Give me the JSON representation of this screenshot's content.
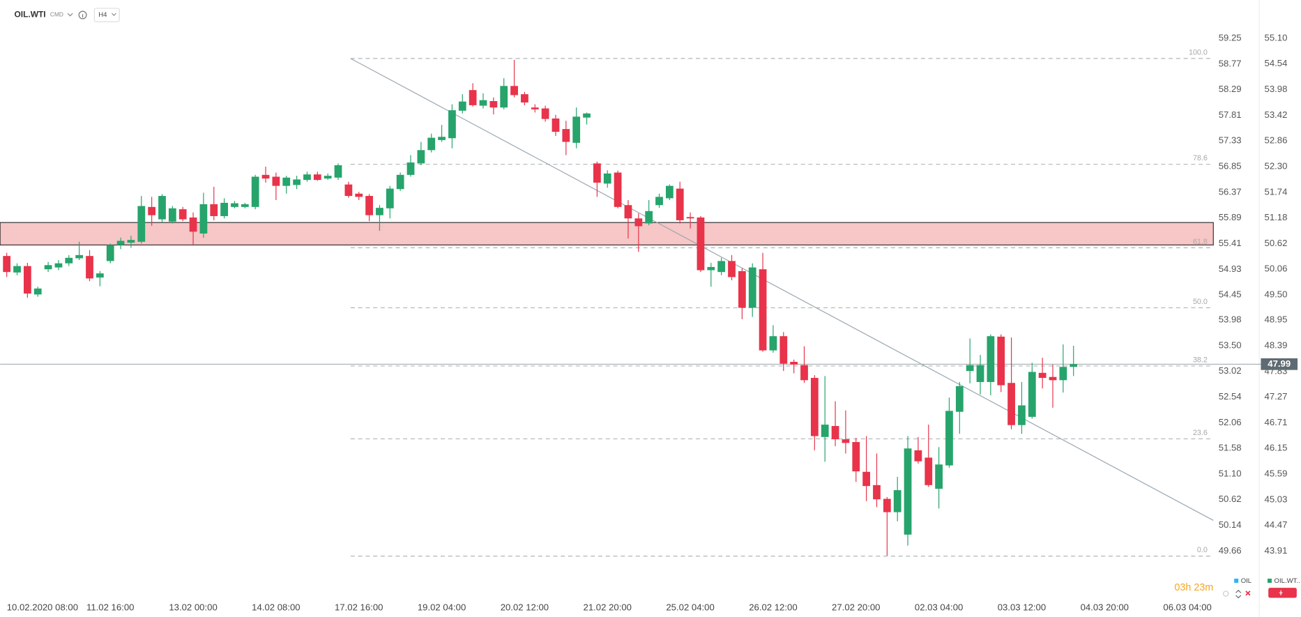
{
  "chart_data": {
    "type": "candlestick",
    "title": "OIL.WTI",
    "subtitle": "CMD",
    "timeframe": "H4",
    "countdown": "03h 23m",
    "current_price": 47.99,
    "legend": [
      {
        "name": "OIL",
        "color": "#29b6f6"
      },
      {
        "name": "OIL.WT..",
        "color": "#26a46b"
      }
    ],
    "up_color": "#26a46b",
    "down_color": "#e8334a",
    "xlim": [
      -0.64,
      116.5
    ],
    "xticks": [
      {
        "value": 2,
        "label": "10.02.2020   08:00"
      },
      {
        "value": 10,
        "label": "11.02 16:00"
      },
      {
        "value": 18,
        "label": "13.02 00:00"
      },
      {
        "value": 26,
        "label": "14.02 08:00"
      },
      {
        "value": 34,
        "label": "17.02 16:00"
      },
      {
        "value": 42,
        "label": "19.02 04:00"
      },
      {
        "value": 50,
        "label": "20.02 12:00"
      },
      {
        "value": 58,
        "label": "21.02 20:00"
      },
      {
        "value": 66,
        "label": "25.02 04:00"
      },
      {
        "value": 74,
        "label": "26.02 12:00"
      },
      {
        "value": 82,
        "label": "27.02 20:00"
      },
      {
        "value": 90,
        "label": "02.03 04:00"
      },
      {
        "value": 98,
        "label": "03.03 12:00"
      },
      {
        "value": 106,
        "label": "04.03 20:00"
      },
      {
        "value": 114,
        "label": "06.03 04:00"
      }
    ],
    "ylim": [
      49.05,
      59.5
    ],
    "yticks": [
      59.25,
      58.77,
      58.29,
      57.81,
      57.33,
      56.85,
      56.37,
      55.89,
      55.41,
      54.93,
      54.45,
      53.98,
      {
        "value": 53.5,
        "label": "53.50"
      },
      53.02,
      52.54,
      52.06,
      51.58,
      {
        "value": 51.1,
        "label": "51.10"
      },
      50.62,
      50.14,
      49.66
    ],
    "y2lim": [
      43.2,
      55.39
    ],
    "y2ticks": [
      {
        "value": 55.1,
        "label": "55.10"
      },
      54.54,
      53.98,
      53.42,
      52.86,
      {
        "value": 52.3,
        "label": "52.30"
      },
      51.74,
      51.18,
      50.62,
      50.06,
      {
        "value": 49.5,
        "label": "49.50"
      },
      48.95,
      48.39,
      47.83,
      47.27,
      46.71,
      46.15,
      45.59,
      45.03,
      44.47,
      43.91
    ],
    "series": [
      {
        "name": "OIL.WT..",
        "axis": "y2",
        "open": [
          50.35,
          49.99,
          50.13,
          49.51,
          50.06,
          50.1,
          50.19,
          50.3,
          50.35,
          49.88,
          50.24,
          50.59,
          50.64,
          50.66,
          51.42,
          51.15,
          51.1,
          51.37,
          51.19,
          50.84,
          51.48,
          51.22,
          51.42,
          51.42,
          51.42,
          52.12,
          52.08,
          51.88,
          51.9,
          52.01,
          52.13,
          52.04,
          52.06,
          51.91,
          51.71,
          51.66,
          51.24,
          51.39,
          51.81,
          52.12,
          52.37,
          52.66,
          52.88,
          52.92,
          53.52,
          53.97,
          53.63,
          53.73,
          53.59,
          54.06,
          53.88,
          53.59,
          53.57,
          53.35,
          53.12,
          52.82,
          53.37,
          52.37,
          51.93,
          52.17,
          51.46,
          51.17,
          51.06,
          51.46,
          51.61,
          51.82,
          51.2,
          51.19,
          50.04,
          50.0,
          50.24,
          50.02,
          49.22,
          50.06,
          48.29,
          48.6,
          48.04,
          47.97,
          47.69,
          46.4,
          46.64,
          46.35,
          46.29,
          45.64,
          45.35,
          45.05,
          44.76,
          44.27,
          46.11,
          45.95,
          45.27,
          45.78,
          46.95,
          47.84,
          47.6,
          47.6,
          48.59,
          47.58,
          46.66,
          46.84,
          47.8,
          47.71,
          47.64,
          47.93
        ],
        "high": [
          50.42,
          50.19,
          50.2,
          49.68,
          50.22,
          50.26,
          50.37,
          50.66,
          50.48,
          50.02,
          50.62,
          50.75,
          50.79,
          51.66,
          51.64,
          51.7,
          51.44,
          51.42,
          51.3,
          51.73,
          51.86,
          51.61,
          51.55,
          51.51,
          52.12,
          52.3,
          52.17,
          52.1,
          52.1,
          52.19,
          52.19,
          52.15,
          52.37,
          51.97,
          51.75,
          51.7,
          51.46,
          51.88,
          52.17,
          52.55,
          52.84,
          53.02,
          53.21,
          53.66,
          53.88,
          54.12,
          53.9,
          53.81,
          54.23,
          54.63,
          53.93,
          53.66,
          53.63,
          53.43,
          53.3,
          53.59,
          53.48,
          52.41,
          52.22,
          52.21,
          51.57,
          51.28,
          51.57,
          51.71,
          51.91,
          51.97,
          51.3,
          51.22,
          50.2,
          50.31,
          50.37,
          50.08,
          50.19,
          50.42,
          48.84,
          48.69,
          48.09,
          48.38,
          47.75,
          47.73,
          47.18,
          46.98,
          46.38,
          46.42,
          46.04,
          45.09,
          45.53,
          46.42,
          46.4,
          46.67,
          46.18,
          47.26,
          47.6,
          48.55,
          48.19,
          48.64,
          48.64,
          48.57,
          47.6,
          48.02,
          48.13,
          47.98,
          48.42,
          48.39
        ],
        "low": [
          49.89,
          49.93,
          49.44,
          49.46,
          50.0,
          50.04,
          50.13,
          50.26,
          49.8,
          49.69,
          50.19,
          50.5,
          50.53,
          50.62,
          51.01,
          51.08,
          51.06,
          51.11,
          50.6,
          50.75,
          51.13,
          51.17,
          51.39,
          51.39,
          51.37,
          51.95,
          51.57,
          51.71,
          51.81,
          51.97,
          51.99,
          52.01,
          52.01,
          51.62,
          51.57,
          51.11,
          50.9,
          51.17,
          51.77,
          52.08,
          52.33,
          52.61,
          52.84,
          52.7,
          53.46,
          53.61,
          53.57,
          53.44,
          53.55,
          53.81,
          53.64,
          53.48,
          53.28,
          52.97,
          52.55,
          52.7,
          53.22,
          51.64,
          51.84,
          51.39,
          50.73,
          50.44,
          51.02,
          51.4,
          51.57,
          51.06,
          50.95,
          50.0,
          49.68,
          49.93,
          49.82,
          48.97,
          49.02,
          48.26,
          48.24,
          47.84,
          47.79,
          47.58,
          46.11,
          45.86,
          46.2,
          46.04,
          45.42,
          45.0,
          44.87,
          43.81,
          44.56,
          44.03,
          45.82,
          45.31,
          44.84,
          45.73,
          46.47,
          47.57,
          47.33,
          47.31,
          47.38,
          46.57,
          46.47,
          46.8,
          47.46,
          47.04,
          47.37,
          47.73
        ],
        "close": [
          50.0,
          50.13,
          49.53,
          49.64,
          50.15,
          50.19,
          50.31,
          50.37,
          49.86,
          49.97,
          50.59,
          50.68,
          50.7,
          51.44,
          51.24,
          51.66,
          51.39,
          51.15,
          50.88,
          51.48,
          51.22,
          51.51,
          51.5,
          51.48,
          52.08,
          52.04,
          51.88,
          52.06,
          52.02,
          52.13,
          52.01,
          52.1,
          52.33,
          51.66,
          51.64,
          51.24,
          51.4,
          51.82,
          52.12,
          52.39,
          52.66,
          52.93,
          52.95,
          53.53,
          53.72,
          53.64,
          53.75,
          53.59,
          54.06,
          53.86,
          53.7,
          53.55,
          53.34,
          53.06,
          52.84,
          53.39,
          53.46,
          51.95,
          52.15,
          51.42,
          51.17,
          51.0,
          51.33,
          51.64,
          51.88,
          51.13,
          51.17,
          50.04,
          50.11,
          50.24,
          49.89,
          49.22,
          50.1,
          48.29,
          48.6,
          48.0,
          47.98,
          47.64,
          46.42,
          46.67,
          46.35,
          46.27,
          45.65,
          45.33,
          45.04,
          44.76,
          45.24,
          46.15,
          45.87,
          45.35,
          45.8,
          46.97,
          47.51,
          47.97,
          47.97,
          48.6,
          47.53,
          46.66,
          47.09,
          47.82,
          47.69,
          47.64,
          47.93,
          47.99
        ]
      }
    ],
    "fib_levels": [
      {
        "label": "100.0",
        "value": 54.66
      },
      {
        "label": "78.6",
        "value": 52.35
      },
      {
        "label": "61.8",
        "value": 50.53
      },
      {
        "label": "50.0",
        "value": 49.22
      },
      {
        "label": "38.2",
        "value": 47.95
      },
      {
        "label": "23.6",
        "value": 46.36
      },
      {
        "label": "0.0",
        "value": 43.8
      }
    ],
    "trendline": {
      "x": [
        33.2,
        116.5
      ],
      "y": [
        54.66,
        44.58
      ],
      "color": "#9aa7b0"
    },
    "zone": {
      "from": 50.59,
      "to": 51.08,
      "color": "#f7c6c6"
    }
  }
}
